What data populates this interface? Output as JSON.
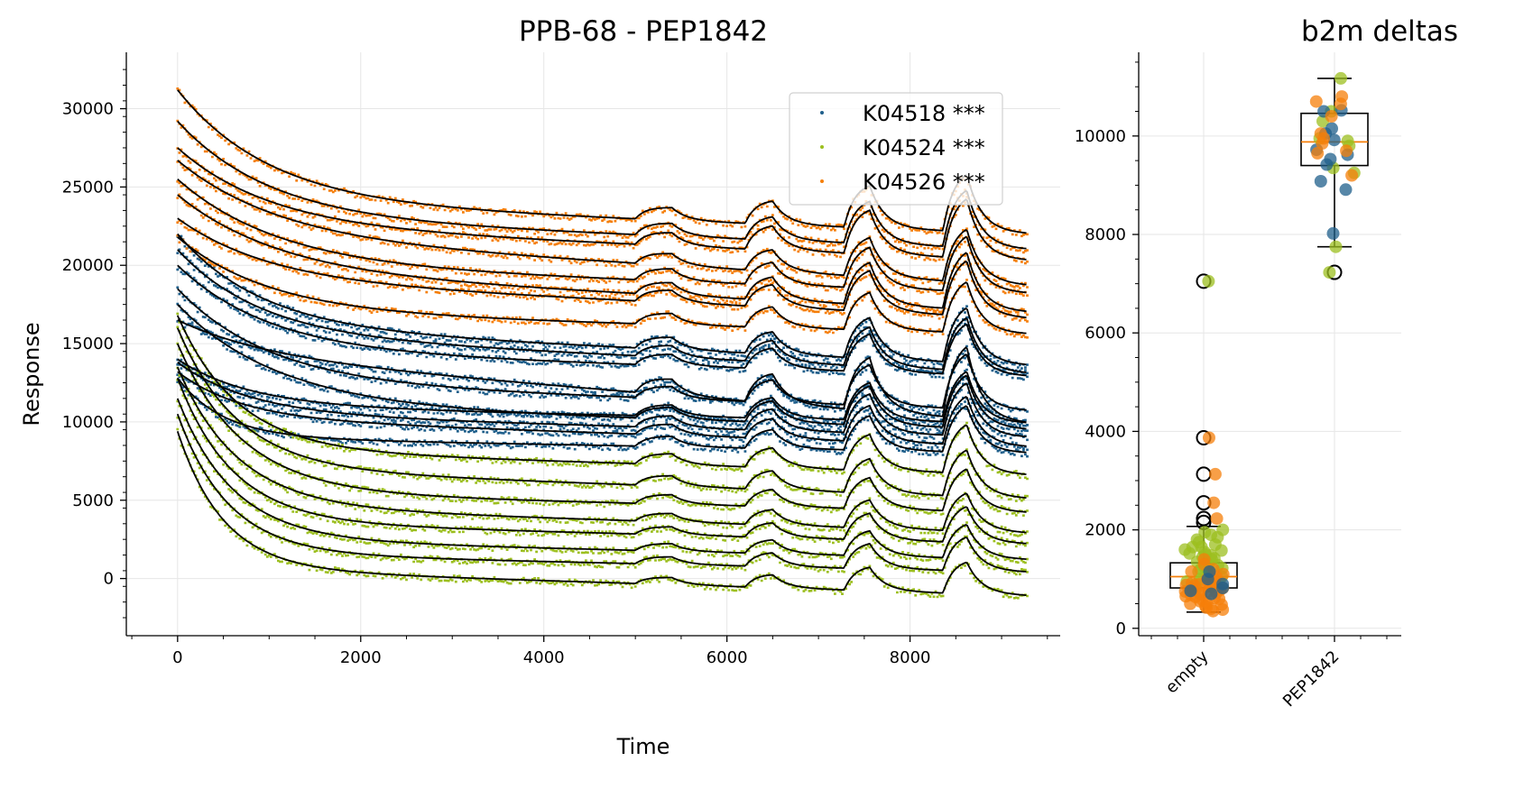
{
  "chart_data": [
    {
      "type": "scatter",
      "title": "PPB-68 - PEP1842",
      "xlabel": "Time",
      "ylabel": "Response",
      "xlim": [
        -560,
        9640
      ],
      "ylim": [
        -3650,
        33600
      ],
      "x_ticks": [
        0,
        2000,
        4000,
        6000,
        8000
      ],
      "x_tick_labels": [
        "0",
        "2000",
        "4000",
        "6000",
        "8000"
      ],
      "y_ticks": [
        0,
        5000,
        10000,
        15000,
        20000,
        25000,
        30000
      ],
      "y_tick_labels": [
        "0",
        "5000",
        "10000",
        "15000",
        "20000",
        "25000",
        "30000"
      ],
      "grid": true,
      "legend_position": "upper-right",
      "time_max": 9280,
      "injections": [
        {
          "start": 5000,
          "end": 5400,
          "amp": 0.3
        },
        {
          "start": 6200,
          "end": 6500,
          "amp": 0.55
        },
        {
          "start": 7280,
          "end": 7560,
          "amp": 1.0
        },
        {
          "start": 8360,
          "end": 8620,
          "amp": 1.35
        }
      ],
      "series": [
        {
          "name": "K04518 ***",
          "color": "#1f5f8b",
          "curves": [
            {
              "start": 22000,
              "plateau": 16000,
              "tau": 900,
              "late_drift": -2400,
              "pulse": 2600
            },
            {
              "start": 21000,
              "plateau": 15500,
              "tau": 900,
              "late_drift": -2400,
              "pulse": 2500
            },
            {
              "start": 20000,
              "plateau": 14500,
              "tau": 1000,
              "late_drift": -1600,
              "pulse": 2400
            },
            {
              "start": 18500,
              "plateau": 12500,
              "tau": 1000,
              "late_drift": -1800,
              "pulse": 2600
            },
            {
              "start": 17500,
              "plateau": 11000,
              "tau": 1100,
              "late_drift": -1500,
              "pulse": 2500
            },
            {
              "start": 14000,
              "plateau": 11000,
              "tau": 800,
              "late_drift": -1100,
              "pulse": 2400
            },
            {
              "start": 16500,
              "plateau": 14200,
              "tau": 1000,
              "late_drift": -4300,
              "pulse": 3400
            },
            {
              "start": 13800,
              "plateau": 10500,
              "tau": 800,
              "late_drift": -1500,
              "pulse": 2500
            },
            {
              "start": 13200,
              "plateau": 10200,
              "tau": 700,
              "late_drift": -1800,
              "pulse": 2300
            },
            {
              "start": 12800,
              "plateau": 9000,
              "tau": 500,
              "late_drift": -1000,
              "pulse": 2200
            }
          ]
        },
        {
          "name": "K04524 ***",
          "color": "#9cbf1f",
          "curves": [
            {
              "start": 16800,
              "plateau": 8200,
              "tau": 650,
              "late_drift": -1600,
              "pulse": 2300
            },
            {
              "start": 16000,
              "plateau": 7000,
              "tau": 650,
              "late_drift": -1900,
              "pulse": 2200
            },
            {
              "start": 15000,
              "plateau": 5500,
              "tau": 700,
              "late_drift": -1300,
              "pulse": 2000
            },
            {
              "start": 13500,
              "plateau": 4600,
              "tau": 650,
              "late_drift": -1700,
              "pulse": 1800
            },
            {
              "start": 12800,
              "plateau": 3600,
              "tau": 600,
              "late_drift": -1400,
              "pulse": 1700
            },
            {
              "start": 11500,
              "plateau": 2500,
              "tau": 600,
              "late_drift": -1300,
              "pulse": 1600
            },
            {
              "start": 10500,
              "plateau": 1600,
              "tau": 550,
              "late_drift": -1200,
              "pulse": 1600
            },
            {
              "start": 9400,
              "plateau": 600,
              "tau": 500,
              "late_drift": -1700,
              "pulse": 1500
            }
          ]
        },
        {
          "name": "K04526 ***",
          "color": "#f57f0a",
          "curves": [
            {
              "start": 31200,
              "plateau": 24000,
              "tau": 1000,
              "late_drift": -2000,
              "pulse": 2700
            },
            {
              "start": 29200,
              "plateau": 23000,
              "tau": 1000,
              "late_drift": -2000,
              "pulse": 2700
            },
            {
              "start": 27500,
              "plateau": 22500,
              "tau": 1000,
              "late_drift": -2200,
              "pulse": 2800
            },
            {
              "start": 26700,
              "plateau": 21700,
              "tau": 1100,
              "late_drift": -3000,
              "pulse": 2500
            },
            {
              "start": 25500,
              "plateau": 20000,
              "tau": 1100,
              "late_drift": -1800,
              "pulse": 2600
            },
            {
              "start": 24500,
              "plateau": 19500,
              "tau": 1100,
              "late_drift": -2500,
              "pulse": 2700
            },
            {
              "start": 23000,
              "plateau": 19000,
              "tau": 1000,
              "late_drift": -2400,
              "pulse": 2600
            },
            {
              "start": 21800,
              "plateau": 17000,
              "tau": 1000,
              "late_drift": -1400,
              "pulse": 2400
            }
          ]
        }
      ]
    },
    {
      "type": "box",
      "title": "b2m deltas",
      "categories": [
        "empty",
        "PEP1842"
      ],
      "ylim": [
        -150,
        11700
      ],
      "y_ticks": [
        0,
        2000,
        4000,
        6000,
        8000,
        10000
      ],
      "y_tick_labels": [
        "0",
        "2000",
        "4000",
        "6000",
        "8000",
        "10000"
      ],
      "grid": true,
      "boxes": [
        {
          "category": "empty",
          "q1": 820,
          "median": 1050,
          "q3": 1330,
          "whisker_low": 330,
          "whisker_high": 2070,
          "outliers": [
            7050,
            3870,
            3130,
            2550,
            2230,
            2150
          ]
        },
        {
          "category": "PEP1842",
          "q1": 9400,
          "median": 9880,
          "q3": 10460,
          "whisker_low": 7750,
          "whisker_high": 11170,
          "outliers": [
            7230
          ]
        }
      ],
      "points": [
        {
          "category": "empty",
          "color": "#9cbf1f",
          "values": [
            7050,
            2000,
            1950,
            1900,
            1850,
            1800,
            1750,
            1700,
            1650,
            1600,
            1550,
            1500,
            1450,
            1400,
            1350,
            1300,
            1280,
            1250,
            1220,
            1200,
            1180,
            1150,
            1100,
            1050,
            1000,
            950,
            900,
            850,
            800,
            1650,
            1580,
            1520,
            1480,
            1420
          ]
        },
        {
          "category": "empty",
          "color": "#f57f0a",
          "values": [
            3870,
            3130,
            2550,
            2230,
            1400,
            1300,
            1200,
            1150,
            1100,
            1050,
            1000,
            980,
            950,
            920,
            900,
            880,
            850,
            820,
            800,
            780,
            750,
            720,
            700,
            680,
            650,
            620,
            600,
            580,
            550,
            520,
            500,
            480,
            450,
            420,
            400,
            380,
            350,
            900,
            860,
            760,
            700,
            640
          ]
        },
        {
          "category": "empty",
          "color": "#1f5f8b",
          "values": [
            1150,
            1000,
            900,
            820,
            760,
            700
          ]
        },
        {
          "category": "PEP1842",
          "color": "#9cbf1f",
          "values": [
            11170,
            10500,
            10300,
            9950,
            9900,
            9800,
            9350,
            9250,
            7750,
            7230
          ]
        },
        {
          "category": "PEP1842",
          "color": "#1f5f8b",
          "values": [
            10520,
            10500,
            10150,
            10050,
            9920,
            9720,
            9620,
            9530,
            9420,
            9080,
            8910,
            8020
          ]
        },
        {
          "category": "PEP1842",
          "color": "#f57f0a",
          "values": [
            10800,
            10700,
            10650,
            10400,
            10050,
            9950,
            9850,
            9700,
            9650,
            9200
          ]
        }
      ]
    }
  ]
}
